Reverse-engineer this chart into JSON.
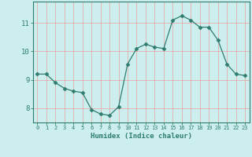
{
  "xlabel": "Humidex (Indice chaleur)",
  "x_values": [
    0,
    1,
    2,
    3,
    4,
    5,
    6,
    7,
    8,
    9,
    10,
    11,
    12,
    13,
    14,
    15,
    16,
    17,
    18,
    19,
    20,
    21,
    22,
    23
  ],
  "y_values": [
    9.2,
    9.2,
    8.9,
    8.7,
    8.6,
    8.55,
    7.95,
    7.8,
    7.75,
    8.05,
    9.55,
    10.1,
    10.25,
    10.15,
    10.1,
    11.1,
    11.25,
    11.1,
    10.85,
    10.85,
    10.4,
    9.55,
    9.2,
    9.15
  ],
  "line_color": "#2e7d6e",
  "marker": "D",
  "marker_size": 2.5,
  "bg_color": "#cceeed",
  "grid_color": "#e8a0a0",
  "axis_color": "#2e7d6e",
  "tick_label_color": "#2e7d6e",
  "xlabel_color": "#2e7d6e",
  "ylim": [
    7.5,
    11.75
  ],
  "yticks": [
    8,
    9,
    10,
    11
  ],
  "xlim": [
    -0.5,
    23.5
  ]
}
